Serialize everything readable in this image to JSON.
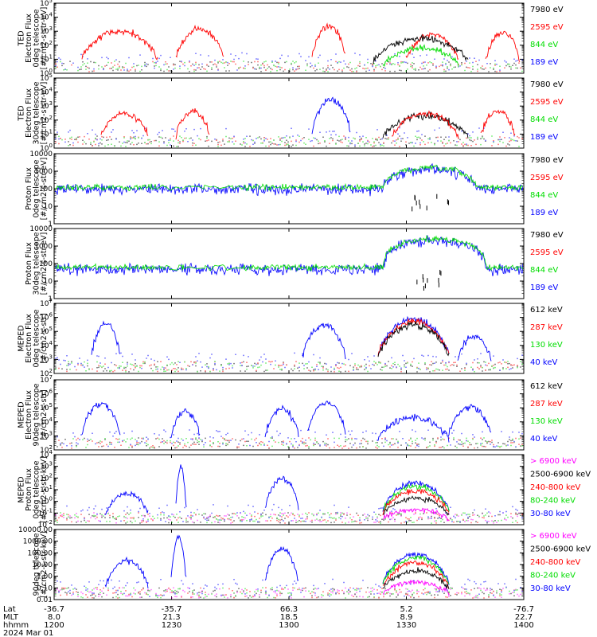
{
  "chart_data": {
    "type": "line",
    "date": "2024 Mar 01",
    "x_axis": {
      "row_labels": [
        "Lat",
        "MLT",
        "hhmm"
      ],
      "ticks": [
        {
          "Lat": "-36.7",
          "MLT": "8.0",
          "hhmm": "1200"
        },
        {
          "Lat": "-35.7",
          "MLT": "21.3",
          "hhmm": "1230"
        },
        {
          "Lat": "66.3",
          "MLT": "18.5",
          "hhmm": "1300"
        },
        {
          "Lat": "5.2",
          "MLT": "8.9",
          "hhmm": "1330"
        },
        {
          "Lat": "-76.7",
          "MLT": "22.7",
          "hhmm": "1400"
        }
      ]
    },
    "panels": [
      {
        "name": "ted-electron-0deg",
        "ylabel": [
          "TED",
          "Electron Flux",
          "0deg telescope",
          "[#/cm2-s-str-eV]"
        ],
        "log": true,
        "ylim": [
          1,
          100000
        ],
        "yticks": [
          "10^0",
          "10^1",
          "10^2",
          "10^3",
          "10^4",
          "10^5"
        ],
        "series": [
          {
            "name": "7980 eV",
            "color": "#000000"
          },
          {
            "name": "2595 eV",
            "color": "#ff0000"
          },
          {
            "name": "844 eV",
            "color": "#00dd00"
          },
          {
            "name": "189 eV",
            "color": "#0000ff"
          }
        ],
        "bursts": [
          {
            "series": 1,
            "t": [
              0.06,
              0.22
            ],
            "peak": 1000
          },
          {
            "series": 1,
            "t": [
              0.26,
              0.36
            ],
            "peak": 1500
          },
          {
            "series": 1,
            "t": [
              0.55,
              0.62
            ],
            "peak": 2500
          },
          {
            "series": 1,
            "t": [
              0.75,
              0.86
            ],
            "peak": 600
          },
          {
            "series": 0,
            "t": [
              0.68,
              0.88
            ],
            "peak": 300
          },
          {
            "series": 2,
            "t": [
              0.7,
              0.86
            ],
            "peak": 60
          },
          {
            "series": 1,
            "t": [
              0.92,
              0.99
            ],
            "peak": 800
          }
        ]
      },
      {
        "name": "ted-electron-30deg",
        "ylabel": [
          "TED",
          "Electron Flux",
          "30deg telescope",
          "[#/cm2-s-str-eV]"
        ],
        "log": true,
        "ylim": [
          1,
          100000
        ],
        "yticks": [
          "10^0",
          "10^1",
          "10^2",
          "10^3",
          "10^4",
          "10^5"
        ],
        "series": [
          {
            "name": "7980 eV",
            "color": "#000000"
          },
          {
            "name": "2595 eV",
            "color": "#ff0000"
          },
          {
            "name": "844 eV",
            "color": "#00dd00"
          },
          {
            "name": "189 eV",
            "color": "#0000ff"
          }
        ],
        "bursts": [
          {
            "series": 1,
            "t": [
              0.1,
              0.2
            ],
            "peak": 300
          },
          {
            "series": 1,
            "t": [
              0.26,
              0.33
            ],
            "peak": 400
          },
          {
            "series": 3,
            "t": [
              0.55,
              0.63
            ],
            "peak": 3000
          },
          {
            "series": 0,
            "t": [
              0.7,
              0.88
            ],
            "peak": 200
          },
          {
            "series": 1,
            "t": [
              0.72,
              0.86
            ],
            "peak": 300
          },
          {
            "series": 1,
            "t": [
              0.91,
              0.98
            ],
            "peak": 500
          }
        ]
      },
      {
        "name": "ted-proton-0deg",
        "ylabel": [
          "Proton Flux",
          "0deg telescope",
          "[#/cm2-s-str-eV]"
        ],
        "log": true,
        "ylim": [
          1,
          10000
        ],
        "yticks": [
          "1",
          "10",
          "100",
          "1000",
          "10000"
        ],
        "series": [
          {
            "name": "7980 eV",
            "color": "#000000"
          },
          {
            "name": "2595 eV",
            "color": "#ff0000"
          },
          {
            "name": "844 eV",
            "color": "#00dd00"
          },
          {
            "name": "189 eV",
            "color": "#0000ff"
          }
        ],
        "profile": {
          "base": 120,
          "peak": 1500,
          "peak_t": [
            0.7,
            0.9
          ]
        }
      },
      {
        "name": "ted-proton-30deg",
        "ylabel": [
          "Proton Flux",
          "30deg telescope",
          "[#/cm2-s-str-eV]"
        ],
        "log": true,
        "ylim": [
          1,
          10000
        ],
        "yticks": [
          "1",
          "10",
          "100",
          "1000",
          "10000"
        ],
        "series": [
          {
            "name": "7980 eV",
            "color": "#000000"
          },
          {
            "name": "2595 eV",
            "color": "#ff0000"
          },
          {
            "name": "844 eV",
            "color": "#00dd00"
          },
          {
            "name": "189 eV",
            "color": "#0000ff"
          }
        ],
        "profile": {
          "base": 60,
          "peak": 2500,
          "peak_t": [
            0.7,
            0.92
          ]
        }
      },
      {
        "name": "meped-electron-0deg",
        "ylabel": [
          "MEPED",
          "Electron Flux",
          "0deg telescope",
          "[#/cm2-s-str]"
        ],
        "log": true,
        "ylim": [
          100,
          10000000
        ],
        "yticks": [
          "10^2",
          "10^3",
          "10^4",
          "10^5",
          "10^6",
          "10^7"
        ],
        "series": [
          {
            "name": "612 keV",
            "color": "#000000"
          },
          {
            "name": "287 keV",
            "color": "#ff0000"
          },
          {
            "name": "130 keV",
            "color": "#00dd00"
          },
          {
            "name": "40 keV",
            "color": "#0000ff"
          }
        ],
        "bursts": [
          {
            "series": 3,
            "t": [
              0.08,
              0.14
            ],
            "peak": 400000
          },
          {
            "series": 3,
            "t": [
              0.53,
              0.62
            ],
            "peak": 300000
          },
          {
            "series": 3,
            "t": [
              0.69,
              0.84
            ],
            "peak": 800000
          },
          {
            "series": 1,
            "t": [
              0.69,
              0.84
            ],
            "peak": 500000
          },
          {
            "series": 0,
            "t": [
              0.69,
              0.84
            ],
            "peak": 300000
          },
          {
            "series": 3,
            "t": [
              0.86,
              0.93
            ],
            "peak": 50000
          }
        ]
      },
      {
        "name": "meped-electron-90deg",
        "ylabel": [
          "MEPED",
          "Electron Flux",
          "90deg telescope",
          "[#/cm2-s-str]"
        ],
        "log": true,
        "ylim": [
          100,
          10000000
        ],
        "yticks": [
          "10^2",
          "10^3",
          "10^4",
          "10^5",
          "10^6",
          "10^7"
        ],
        "series": [
          {
            "name": "612 keV",
            "color": "#000000"
          },
          {
            "name": "287 keV",
            "color": "#ff0000"
          },
          {
            "name": "130 keV",
            "color": "#00dd00"
          },
          {
            "name": "40 keV",
            "color": "#0000ff"
          }
        ],
        "bursts": [
          {
            "series": 3,
            "t": [
              0.06,
              0.14
            ],
            "peak": 200000
          },
          {
            "series": 3,
            "t": [
              0.25,
              0.31
            ],
            "peak": 60000
          },
          {
            "series": 3,
            "t": [
              0.45,
              0.52
            ],
            "peak": 80000
          },
          {
            "series": 3,
            "t": [
              0.54,
              0.62
            ],
            "peak": 250000
          },
          {
            "series": 3,
            "t": [
              0.69,
              0.84
            ],
            "peak": 20000
          },
          {
            "series": 3,
            "t": [
              0.84,
              0.93
            ],
            "peak": 120000
          }
        ]
      },
      {
        "name": "meped-proton-0deg",
        "ylabel": [
          "MEPED",
          "Proton Flux",
          "0deg telescope",
          "[#/cm2-s-str-keV]"
        ],
        "log": true,
        "ylim": [
          0.01,
          10000
        ],
        "yticks": [
          "10^-2",
          "10^-1",
          "10^0",
          "10^1",
          "10^2",
          "10^3",
          "10^4"
        ],
        "series": [
          {
            "name": "> 6900 keV",
            "color": "#ff00ff"
          },
          {
            "name": "2500-6900 keV",
            "color": "#000000"
          },
          {
            "name": "240-800 keV",
            "color": "#ff0000"
          },
          {
            "name": "80-240 keV",
            "color": "#00dd00"
          },
          {
            "name": "30-80 keV",
            "color": "#0000ff"
          }
        ],
        "bursts": [
          {
            "series": 4,
            "t": [
              0.11,
              0.2
            ],
            "peak": 5
          },
          {
            "series": 4,
            "t": [
              0.26,
              0.28
            ],
            "peak": 1000
          },
          {
            "series": 4,
            "t": [
              0.45,
              0.52
            ],
            "peak": 100
          },
          {
            "series": 4,
            "t": [
              0.7,
              0.84
            ],
            "peak": 40
          },
          {
            "series": 3,
            "t": [
              0.7,
              0.84
            ],
            "peak": 20
          },
          {
            "series": 2,
            "t": [
              0.7,
              0.84
            ],
            "peak": 8
          },
          {
            "series": 1,
            "t": [
              0.7,
              0.84
            ],
            "peak": 2
          },
          {
            "series": 0,
            "t": [
              0.7,
              0.84
            ],
            "peak": 0.2
          }
        ]
      },
      {
        "name": "meped-proton-90deg",
        "ylabel": [
          "90deg telescope",
          "[#/cm2-s-str-keV]"
        ],
        "log": true,
        "ylim": [
          0.01,
          10000
        ],
        "yticks": [
          "0.01",
          "0.10",
          "1.00",
          "10.00",
          "100.00",
          "1000.00",
          "10000.00"
        ],
        "series": [
          {
            "name": "> 6900 keV",
            "color": "#ff00ff"
          },
          {
            "name": "2500-6900 keV",
            "color": "#000000"
          },
          {
            "name": "240-800 keV",
            "color": "#ff0000"
          },
          {
            "name": "80-240 keV",
            "color": "#00dd00"
          },
          {
            "name": "30-80 keV",
            "color": "#0000ff"
          }
        ],
        "bursts": [
          {
            "series": 4,
            "t": [
              0.11,
              0.2
            ],
            "peak": 20
          },
          {
            "series": 4,
            "t": [
              0.25,
              0.28
            ],
            "peak": 2000
          },
          {
            "series": 4,
            "t": [
              0.45,
              0.52
            ],
            "peak": 200
          },
          {
            "series": 4,
            "t": [
              0.7,
              0.84
            ],
            "peak": 80
          },
          {
            "series": 3,
            "t": [
              0.7,
              0.84
            ],
            "peak": 40
          },
          {
            "series": 2,
            "t": [
              0.7,
              0.84
            ],
            "peak": 15
          },
          {
            "series": 1,
            "t": [
              0.7,
              0.84
            ],
            "peak": 3
          },
          {
            "series": 0,
            "t": [
              0.7,
              0.84
            ],
            "peak": 0.3
          }
        ]
      }
    ]
  }
}
